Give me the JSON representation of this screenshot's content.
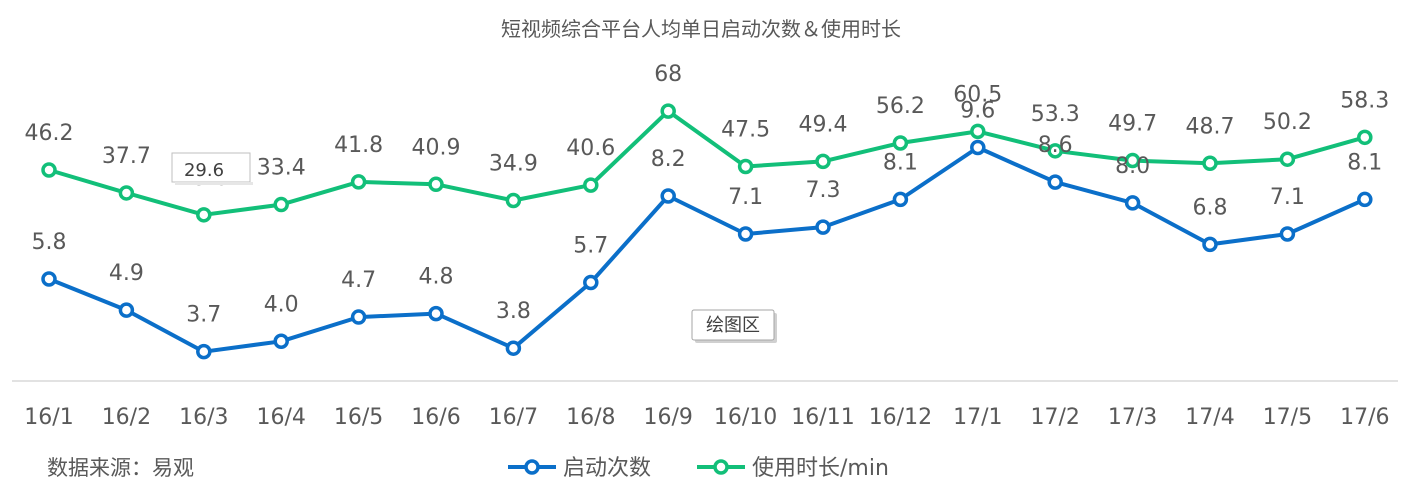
{
  "chart_data": {
    "type": "line",
    "title": "短视频综合平台人均单日启动次数＆使用时长",
    "categories": [
      "16/1",
      "16/2",
      "16/3",
      "16/4",
      "16/5",
      "16/6",
      "16/7",
      "16/8",
      "16/9",
      "16/10",
      "16/11",
      "16/12",
      "17/1",
      "17/2",
      "17/3",
      "17/4",
      "17/5",
      "17/6"
    ],
    "series": [
      {
        "name": "启动次数",
        "color": "#0b6fc9",
        "values": [
          5.8,
          4.9,
          3.7,
          4.0,
          4.7,
          4.8,
          3.8,
          5.7,
          8.2,
          7.1,
          7.3,
          8.1,
          9.6,
          8.6,
          8.0,
          6.8,
          7.1,
          8.1
        ],
        "labels": [
          "5.8",
          "4.9",
          "3.7",
          "4.0",
          "4.7",
          "4.8",
          "3.8",
          "5.7",
          "8.2",
          "7.1",
          "7.3",
          "8.1",
          "9.6",
          "8.6",
          "8.0",
          "6.8",
          "7.1",
          "8.1"
        ]
      },
      {
        "name": "使用时长/min",
        "color": "#12bf79",
        "values": [
          46.2,
          37.7,
          29.6,
          33.4,
          41.8,
          40.9,
          34.9,
          40.6,
          68,
          47.5,
          49.4,
          56.2,
          60.5,
          53.3,
          49.7,
          48.7,
          50.2,
          58.3
        ],
        "labels": [
          "46.2",
          "37.7",
          "29.6",
          "33.4",
          "41.8",
          "40.9",
          "34.9",
          "40.6",
          "68",
          "47.5",
          "49.4",
          "56.2",
          "60.5",
          "53.3",
          "49.7",
          "48.7",
          "50.2",
          "58.3"
        ]
      }
    ],
    "legend_position": "bottom-center",
    "grid": false,
    "axis_color": "#d9d9d9"
  },
  "source_note": "数据来源：易观",
  "overlays": {
    "tooltip_label": "29.6",
    "plot_area_label": "绘图区"
  }
}
